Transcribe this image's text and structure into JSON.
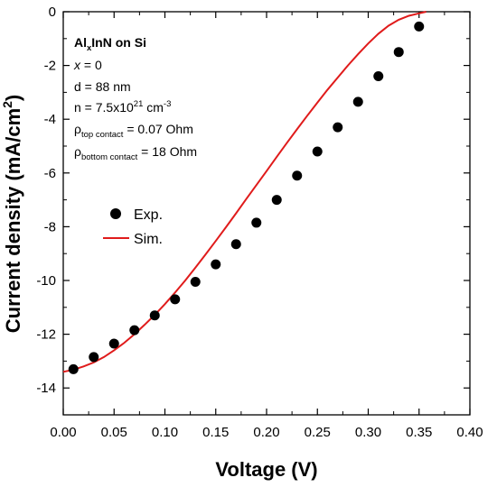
{
  "chart_data": {
    "type": "scatter",
    "xlabel": "Voltage (V)",
    "ylabel": "Current density (mA/cm²)",
    "xlim": [
      0.0,
      0.4
    ],
    "ylim": [
      -15,
      0
    ],
    "x_ticks": [
      "0.00",
      "0.05",
      "0.10",
      "0.15",
      "0.20",
      "0.25",
      "0.30",
      "0.35",
      "0.40"
    ],
    "y_ticks": [
      "0",
      "-2",
      "-4",
      "-6",
      "-8",
      "-10",
      "-12",
      "-14"
    ],
    "grid": false,
    "legend_position": "center-left",
    "series": [
      {
        "name": "Exp.",
        "kind": "scatter",
        "color": "#000000",
        "x": [
          0.01,
          0.03,
          0.05,
          0.07,
          0.09,
          0.11,
          0.13,
          0.15,
          0.17,
          0.19,
          0.21,
          0.23,
          0.25,
          0.27,
          0.29,
          0.31,
          0.33,
          0.35
        ],
        "y": [
          -13.3,
          -12.85,
          -12.35,
          -11.85,
          -11.3,
          -10.7,
          -10.05,
          -9.4,
          -8.65,
          -7.85,
          -7.0,
          -6.1,
          -5.2,
          -4.3,
          -3.35,
          -2.4,
          -1.5,
          -0.55
        ]
      },
      {
        "name": "Sim.",
        "kind": "line",
        "color": "#e01b1b",
        "x": [
          0.0,
          0.01,
          0.02,
          0.03,
          0.04,
          0.05,
          0.06,
          0.07,
          0.08,
          0.09,
          0.1,
          0.11,
          0.12,
          0.13,
          0.14,
          0.15,
          0.16,
          0.17,
          0.18,
          0.19,
          0.2,
          0.21,
          0.22,
          0.23,
          0.24,
          0.25,
          0.26,
          0.27,
          0.28,
          0.29,
          0.3,
          0.31,
          0.32,
          0.33,
          0.34,
          0.35,
          0.357
        ],
        "y": [
          -13.4,
          -13.32,
          -13.2,
          -13.05,
          -12.85,
          -12.6,
          -12.32,
          -12.0,
          -11.65,
          -11.28,
          -10.88,
          -10.45,
          -10.0,
          -9.52,
          -9.03,
          -8.53,
          -8.02,
          -7.5,
          -6.97,
          -6.45,
          -5.93,
          -5.4,
          -4.88,
          -4.37,
          -3.87,
          -3.38,
          -2.9,
          -2.45,
          -2.0,
          -1.58,
          -1.18,
          -0.82,
          -0.52,
          -0.3,
          -0.15,
          -0.06,
          0.0
        ]
      }
    ],
    "annotations": [
      {
        "main": "Al",
        "sub": "x",
        "rest": "InN on Si",
        "bold": true
      },
      {
        "main": "x",
        "rest": " = 0",
        "italic": true
      },
      {
        "text": "d = 88 nm"
      },
      {
        "text": "n = 7.5x10",
        "sup": "21",
        "text2": " cm",
        "sup2": "-3"
      },
      {
        "symbol": "ρ",
        "sub": "top contact",
        "text2": " = 0.07 Ohm"
      },
      {
        "symbol": "ρ",
        "sub": "bottom contact",
        "text2": " = 18 Ohm"
      }
    ]
  }
}
